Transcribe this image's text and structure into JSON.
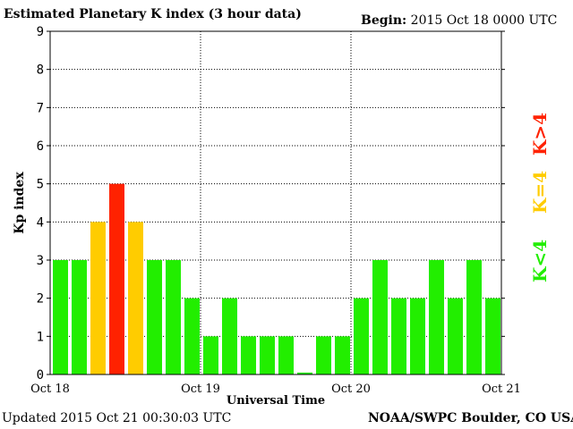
{
  "header": {
    "title": "Estimated Planetary K index (3 hour data)",
    "begin_label": "Begin:",
    "begin_value": "2015 Oct 18 0000 UTC"
  },
  "footer": {
    "updated": "Updated 2015 Oct 21 00:30:03 UTC",
    "credit": "NOAA/SWPC Boulder, CO USA"
  },
  "legend": {
    "high": {
      "label": "K>4",
      "color": "#ff2200"
    },
    "equal": {
      "label": "K=4",
      "color": "#ffcc00"
    },
    "low": {
      "label": "K<4",
      "color": "#22ee00"
    }
  },
  "chart_data": {
    "type": "bar",
    "title": "Estimated Planetary K index (3 hour data)",
    "ylabel": "Kp index",
    "xlabel": "Universal Time",
    "ylim": [
      0,
      9
    ],
    "yticks": [
      0,
      1,
      2,
      3,
      4,
      5,
      6,
      7,
      8,
      9
    ],
    "xticks": [
      "Oct 18",
      "Oct 19",
      "Oct 20",
      "Oct 21"
    ],
    "grid": true,
    "values": [
      3,
      3,
      4,
      5,
      4,
      3,
      3,
      2,
      1,
      2,
      1,
      1,
      1,
      0.05,
      1,
      1,
      2,
      3,
      2,
      2,
      3,
      2,
      3,
      2
    ]
  }
}
